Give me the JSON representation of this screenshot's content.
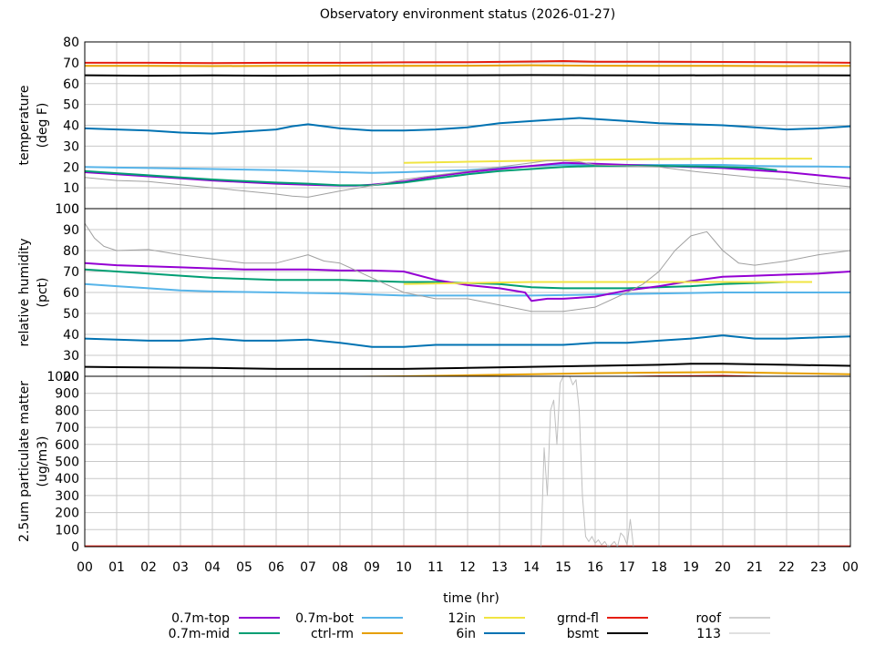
{
  "chart_data": {
    "type": "line",
    "title": "Observatory environment status (2026-01-27)",
    "xlabel": "time (hr)",
    "x_ticks": [
      "00",
      "01",
      "02",
      "03",
      "04",
      "05",
      "06",
      "07",
      "08",
      "09",
      "10",
      "11",
      "12",
      "13",
      "14",
      "15",
      "16",
      "17",
      "18",
      "19",
      "20",
      "21",
      "22",
      "23",
      "00"
    ],
    "xlim": [
      0,
      24
    ],
    "grid": true,
    "legend_position": "bottom",
    "colors": {
      "0.7m-top": "#9400d3",
      "0.7m-mid": "#009e73",
      "0.7m-bot": "#56b4e9",
      "ctrl-rm": "#e69f00",
      "12in": "#f0e442",
      "6in": "#0072b2",
      "grnd-fl": "#e51e10",
      "bsmt": "#000000",
      "roof": "#a0a0a0",
      "113": "#c0c0c0"
    },
    "legend": [
      {
        "name": "0.7m-top",
        "color": "#9400d3"
      },
      {
        "name": "0.7m-mid",
        "color": "#009e73"
      },
      {
        "name": "0.7m-bot",
        "color": "#56b4e9"
      },
      {
        "name": "ctrl-rm",
        "color": "#e69f00"
      },
      {
        "name": "12in",
        "color": "#f0e442"
      },
      {
        "name": "6in",
        "color": "#0072b2"
      },
      {
        "name": "grnd-fl",
        "color": "#e51e10"
      },
      {
        "name": "bsmt",
        "color": "#000000"
      },
      {
        "name": "roof",
        "color": "#a0a0a0"
      },
      {
        "name": "113",
        "color": "#c0c0c0"
      }
    ],
    "panels": [
      {
        "id": "temperature",
        "ylabel": [
          "temperature",
          "(deg F)"
        ],
        "ylim": [
          0,
          80
        ],
        "yticks": [
          0,
          10,
          20,
          30,
          40,
          50,
          60,
          70,
          80
        ],
        "series": [
          {
            "name": "grnd-fl",
            "x": [
              0,
              2,
              4,
              6,
              8,
              10,
              12,
              14,
              15,
              16,
              18,
              20,
              22,
              24
            ],
            "y": [
              70,
              70,
              69.8,
              70,
              70,
              70.2,
              70.3,
              70.6,
              70.8,
              70.5,
              70.5,
              70.4,
              70.3,
              70
            ]
          },
          {
            "name": "ctrl-rm",
            "x": [
              0,
              2,
              4,
              6,
              8,
              10,
              12,
              14,
              16,
              18,
              20,
              22,
              24
            ],
            "y": [
              68.5,
              68.5,
              68.4,
              68.5,
              68.6,
              68.5,
              68.6,
              68.8,
              68.6,
              68.5,
              68.5,
              68.4,
              68.5
            ]
          },
          {
            "name": "bsmt",
            "x": [
              0,
              2,
              4,
              6,
              8,
              10,
              12,
              14,
              16,
              18,
              20,
              22,
              24
            ],
            "y": [
              64,
              63.8,
              63.9,
              63.8,
              63.9,
              64,
              64,
              64.1,
              64,
              63.9,
              64,
              64,
              63.9
            ]
          },
          {
            "name": "6in",
            "x": [
              0,
              1,
              2,
              3,
              4,
              5,
              6,
              6.5,
              7,
              7.5,
              8,
              9,
              10,
              11,
              12,
              13,
              14,
              15,
              15.5,
              16,
              17,
              18,
              19,
              20,
              21,
              22,
              23,
              24
            ],
            "y": [
              38.5,
              38,
              37.5,
              36.5,
              36,
              37,
              38,
              39.5,
              40.5,
              39.5,
              38.5,
              37.5,
              37.5,
              38,
              39,
              41,
              42,
              43,
              43.5,
              43,
              42,
              41,
              40.5,
              40,
              39,
              38,
              38.5,
              39.5
            ]
          },
          {
            "name": "0.7m-bot",
            "x": [
              0,
              2,
              4,
              6,
              8,
              9,
              10,
              11,
              12,
              13,
              14,
              15,
              16,
              17,
              18,
              19,
              20,
              21,
              22,
              23,
              24
            ],
            "y": [
              20,
              19.5,
              19,
              18.5,
              17.5,
              17.2,
              17.5,
              18,
              18.5,
              19.5,
              20.5,
              21,
              21,
              21,
              21,
              21,
              21,
              20.5,
              20.3,
              20.2,
              20
            ]
          },
          {
            "name": "0.7m-top",
            "x": [
              0,
              1,
              2,
              3,
              4,
              5,
              6,
              7,
              8,
              8.5,
              9,
              10,
              11,
              12,
              13,
              14,
              15,
              16,
              17,
              18,
              19,
              20,
              21,
              22,
              23,
              24
            ],
            "y": [
              17.5,
              16.5,
              15.5,
              14.5,
              13.5,
              12.7,
              12,
              11.5,
              11,
              11,
              11.5,
              13,
              15.5,
              17.5,
              19,
              20.5,
              22,
              21.5,
              21,
              20.5,
              20,
              19.5,
              18.5,
              17.5,
              16,
              14.5
            ]
          },
          {
            "name": "0.7m-mid",
            "x": [
              0,
              1,
              2,
              3,
              4,
              5,
              6,
              7,
              8,
              9,
              10,
              11,
              12,
              13,
              14,
              15,
              16,
              17,
              18,
              19,
              20,
              21,
              21.7
            ],
            "y": [
              18,
              17,
              16,
              15,
              14,
              13.2,
              12.5,
              12,
              11.2,
              11.3,
              12.5,
              14.5,
              16.5,
              18,
              19,
              20,
              20.5,
              20.5,
              20.5,
              20.3,
              20,
              19.5,
              18.5
            ]
          },
          {
            "name": "12in",
            "x": [
              10,
              12,
              14,
              15,
              16,
              18,
              20,
              22,
              22.8
            ],
            "y": [
              22,
              22.5,
              23,
              23.2,
              23.5,
              23.8,
              24,
              24,
              24
            ]
          },
          {
            "name": "roof",
            "x": [
              0,
              1,
              2,
              3,
              4,
              5,
              6,
              6.5,
              7,
              7.5,
              8,
              9,
              10,
              11,
              12,
              13,
              13.5,
              14,
              14.5,
              15,
              15.5,
              16,
              17,
              18,
              19,
              20,
              21,
              22,
              23,
              24
            ],
            "y": [
              15,
              13.5,
              13,
              11.5,
              10,
              8.5,
              7,
              6,
              5.5,
              7,
              8.5,
              11,
              14,
              16,
              18,
              20,
              21,
              22,
              23,
              23,
              22.5,
              21,
              20.5,
              20,
              18,
              16.5,
              15,
              14,
              12,
              10.5
            ]
          }
        ]
      },
      {
        "id": "humidity",
        "ylabel": [
          "relative humidity",
          "(pct)"
        ],
        "ylim": [
          20,
          100
        ],
        "yticks": [
          20,
          30,
          40,
          50,
          60,
          70,
          80,
          90,
          100
        ],
        "series": [
          {
            "name": "grnd-fl",
            "x": [
              0,
              2,
              4,
              6,
              8,
              10,
              12,
              14,
              16,
              18,
              20,
              22,
              24
            ],
            "y": [
              17.5,
              17.5,
              17.3,
              17.5,
              17.5,
              17.8,
              18.5,
              19,
              19.5,
              20,
              20.2,
              19.5,
              19
            ]
          },
          {
            "name": "ctrl-rm",
            "x": [
              0,
              2,
              4,
              6,
              8,
              10,
              12,
              14,
              16,
              18,
              20,
              22,
              24
            ],
            "y": [
              19.5,
              19.5,
              19.5,
              19.6,
              19.7,
              20,
              20.5,
              21,
              21.5,
              21.8,
              22,
              21.5,
              21
            ]
          },
          {
            "name": "bsmt",
            "x": [
              0,
              2,
              4,
              6,
              8,
              10,
              12,
              14,
              16,
              18,
              19,
              20,
              22,
              24
            ],
            "y": [
              24.5,
              24.2,
              24,
              23.5,
              23.5,
              23.5,
              24,
              24.5,
              25,
              25.5,
              26,
              26,
              25.5,
              25
            ]
          },
          {
            "name": "6in",
            "x": [
              0,
              1,
              2,
              3,
              4,
              5,
              6,
              7,
              8,
              9,
              10,
              11,
              12,
              13,
              14,
              15,
              16,
              17,
              18,
              19,
              20,
              21,
              22,
              23,
              24
            ],
            "y": [
              38,
              37.5,
              37,
              37,
              38,
              37,
              37,
              37.5,
              36,
              34,
              34,
              35,
              35,
              35,
              35,
              35,
              36,
              36,
              37,
              38,
              39.5,
              38,
              38,
              38.5,
              39
            ]
          },
          {
            "name": "0.7m-bot",
            "x": [
              0,
              1,
              2,
              3,
              4,
              6,
              8,
              10,
              12,
              14,
              16,
              18,
              20,
              22,
              24
            ],
            "y": [
              64,
              63,
              62,
              61,
              60.5,
              60,
              59.5,
              58.5,
              58.5,
              58.5,
              59,
              59.5,
              60,
              60,
              60
            ]
          },
          {
            "name": "0.7m-mid",
            "x": [
              0,
              1,
              2,
              3,
              4,
              6,
              8,
              10,
              11,
              12,
              13,
              14,
              15,
              16,
              17,
              18,
              19,
              20,
              21,
              22
            ],
            "y": [
              71,
              70,
              69,
              68,
              67,
              66,
              66,
              65,
              65,
              64.5,
              64,
              62.5,
              62,
              62,
              62,
              62.5,
              63,
              64,
              64.5,
              65
            ]
          },
          {
            "name": "0.7m-top",
            "x": [
              0,
              1,
              2,
              3,
              4,
              5,
              6,
              7,
              8,
              9,
              10,
              11,
              12,
              13,
              13.8,
              14,
              14.5,
              15,
              16,
              17,
              18,
              19,
              20,
              21,
              22,
              23,
              24
            ],
            "y": [
              74,
              73,
              72.5,
              72,
              71.5,
              71,
              71,
              71,
              70.5,
              70.5,
              70,
              66,
              63.5,
              62,
              60,
              56,
              57,
              57,
              58,
              61,
              63,
              65.5,
              67.5,
              68,
              68.5,
              69,
              70
            ]
          },
          {
            "name": "12in",
            "x": [
              10,
              12,
              14,
              16,
              18,
              20,
              22,
              22.8
            ],
            "y": [
              64,
              64.5,
              65,
              65,
              65,
              65,
              65,
              65
            ]
          },
          {
            "name": "roof",
            "x": [
              0,
              0.3,
              0.6,
              1,
              2,
              3,
              4,
              5,
              6,
              6.5,
              7,
              7.5,
              8,
              9,
              10,
              11,
              12,
              13,
              14,
              15,
              16,
              17,
              17.5,
              18,
              18.5,
              19,
              19.5,
              20,
              20.5,
              21,
              22,
              23,
              24
            ],
            "y": [
              93,
              86,
              82,
              80,
              80.5,
              78,
              76,
              74,
              74,
              76,
              78,
              75,
              74,
              67,
              60,
              57,
              57,
              54,
              51,
              51,
              53,
              60,
              64,
              70,
              80,
              87,
              89,
              80,
              74,
              73,
              75,
              78,
              80
            ]
          }
        ]
      },
      {
        "id": "pm25",
        "ylabel": [
          "2.5um particulate matter",
          "(ug/m3)"
        ],
        "ylim": [
          0,
          1000
        ],
        "yticks": [
          0,
          100,
          200,
          300,
          400,
          500,
          600,
          700,
          800,
          900,
          1000
        ],
        "series": [
          {
            "name": "grnd-fl",
            "x": [
              0,
              6,
              12,
              18,
              24
            ],
            "y": [
              2,
              2,
              2,
              2,
              2
            ]
          },
          {
            "name": "113",
            "x": [
              14.3,
              14.4,
              14.5,
              14.6,
              14.7,
              14.8,
              14.9,
              15.0,
              15.1,
              15.2,
              15.3,
              15.4,
              15.5,
              15.6,
              15.7,
              15.8,
              15.9,
              16.0,
              16.1,
              16.2,
              16.3,
              16.4,
              16.5,
              16.6,
              16.7,
              16.8,
              16.9,
              17.0,
              17.1,
              17.2,
              17.3
            ],
            "y": [
              0,
              580,
              300,
              800,
              860,
              600,
              960,
              1000,
              1000,
              1000,
              950,
              980,
              800,
              300,
              60,
              30,
              60,
              20,
              40,
              10,
              30,
              0,
              10,
              30,
              0,
              80,
              60,
              10,
              160,
              0,
              0
            ]
          }
        ]
      }
    ]
  }
}
